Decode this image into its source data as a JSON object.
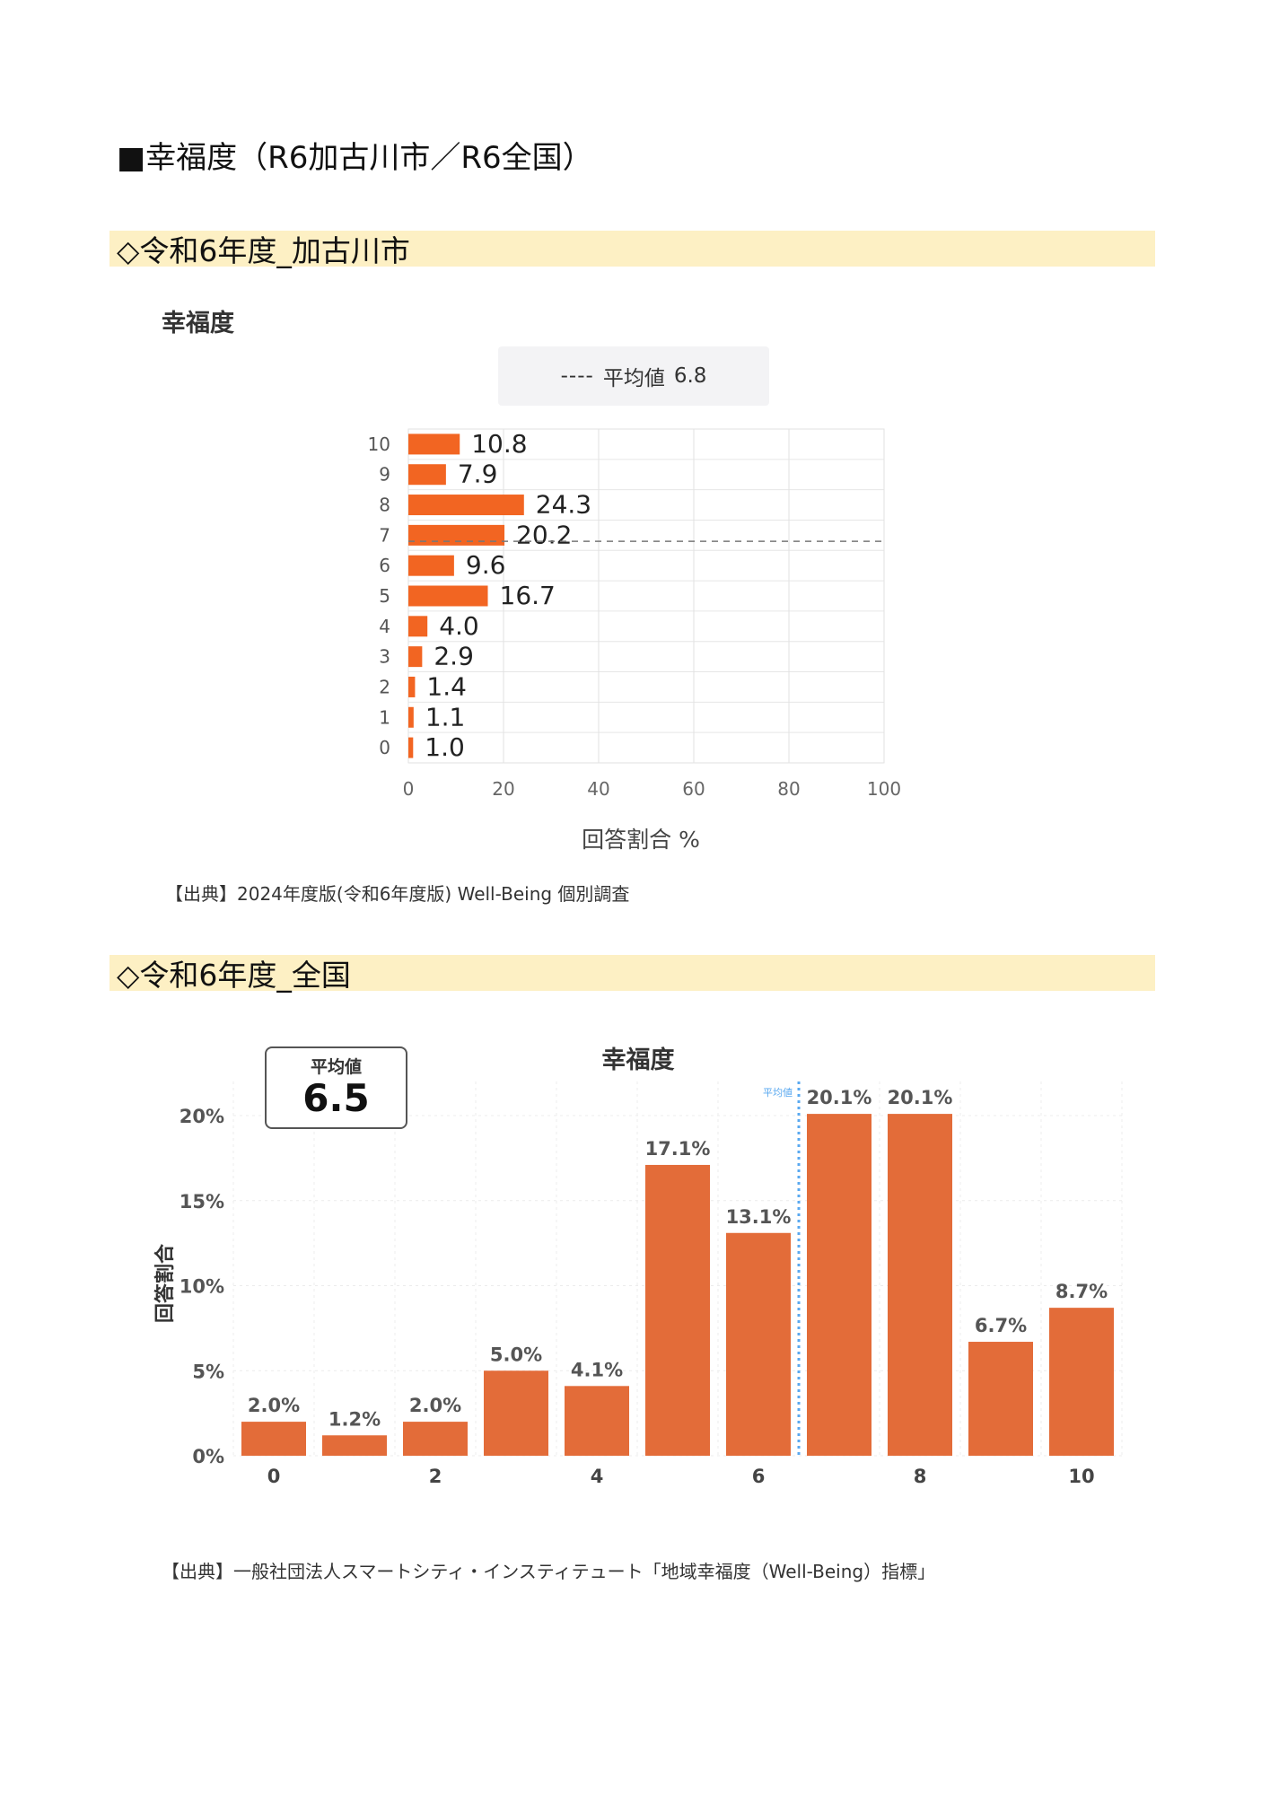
{
  "page": {
    "title": "■幸福度（R6加古川市／R6全国）",
    "section1": "◇令和6年度_加古川市",
    "section2": "◇令和6年度_全国",
    "source1": "【出典】2024年度版(令和6年度版) Well-Being 個別調査",
    "source2": "【出典】一般社団法人スマートシティ・インスティテュート「地域幸福度（Well-Being）指標」"
  },
  "chart_data": [
    {
      "type": "bar",
      "orientation": "horizontal",
      "title": "幸福度",
      "legend_dash": "----",
      "legend_label": "平均値",
      "legend_value": "6.8",
      "average": 6.8,
      "categories": [
        "10",
        "9",
        "8",
        "7",
        "6",
        "5",
        "4",
        "3",
        "2",
        "1",
        "0"
      ],
      "values": [
        10.8,
        7.9,
        24.3,
        20.2,
        9.6,
        16.7,
        4.0,
        2.9,
        1.4,
        1.1,
        1.0
      ],
      "value_labels": [
        "10.8",
        "7.9",
        "24.3",
        "20.2",
        "9.6",
        "16.7",
        "4.0",
        "2.9",
        "1.4",
        "1.1",
        "1.0"
      ],
      "xlabel": "回答割合 %",
      "xlim": [
        0,
        100
      ],
      "xticks": [
        "0",
        "20",
        "40",
        "60",
        "80",
        "100"
      ],
      "grid": true,
      "bar_color": "#f26522",
      "legend_position": "top-center"
    },
    {
      "type": "bar",
      "orientation": "vertical",
      "title": "幸福度",
      "ylabel": "回答割合",
      "average_box_label": "平均値",
      "average_box_value": "6.5",
      "average_line_label": "平均値",
      "average": 6.5,
      "categories": [
        "0",
        "1",
        "2",
        "3",
        "4",
        "5",
        "6",
        "7",
        "8",
        "9",
        "10"
      ],
      "values": [
        2.0,
        1.2,
        2.0,
        5.0,
        4.1,
        17.1,
        13.1,
        20.1,
        20.1,
        6.7,
        8.7
      ],
      "value_labels": [
        "2.0%",
        "1.2%",
        "2.0%",
        "5.0%",
        "4.1%",
        "17.1%",
        "13.1%",
        "20.1%",
        "20.1%",
        "6.7%",
        "8.7%"
      ],
      "xticks": [
        "0",
        "2",
        "4",
        "6",
        "8",
        "10"
      ],
      "yticks": [
        "0%",
        "5%",
        "10%",
        "15%",
        "20%"
      ],
      "ylim": [
        0,
        20
      ],
      "grid": true,
      "bar_color": "#e36c39",
      "avg_line_color": "#5aa9f0"
    }
  ]
}
